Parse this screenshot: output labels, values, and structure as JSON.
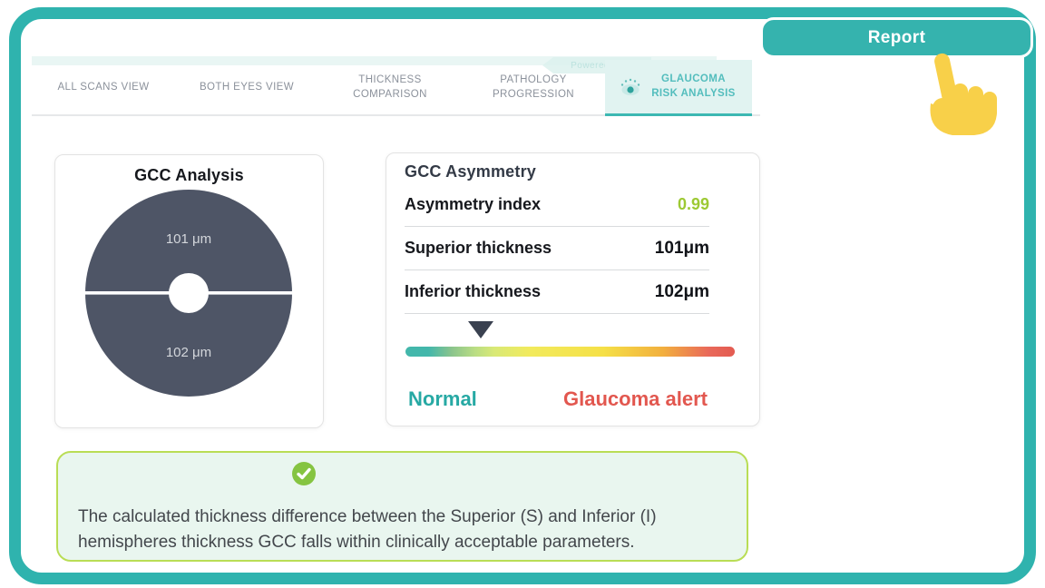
{
  "header": {
    "report_label": "Report"
  },
  "watermark": {
    "label": "Powered by"
  },
  "tabs": [
    {
      "label": "ALL SCANS VIEW",
      "active": false
    },
    {
      "label": "BOTH EYES VIEW",
      "active": false
    },
    {
      "label": "THICKNESS COMPARISON",
      "active": false
    },
    {
      "label": "PATHOLOGY PROGRESSION",
      "active": false
    },
    {
      "label": "GLAUCOMA RISK ANALYSIS",
      "active": true,
      "icon": "eye-icon"
    }
  ],
  "gcc_analysis": {
    "title": "GCC Analysis",
    "superior_label": "101 μm",
    "inferior_label": "102 μm"
  },
  "gcc_asymmetry": {
    "title": "GCC Asymmetry",
    "rows": [
      {
        "label": "Asymmetry index",
        "value": "0.99"
      },
      {
        "label": "Superior thickness",
        "value": "101μm"
      },
      {
        "label": "Inferior thickness",
        "value": "102μm"
      }
    ],
    "scale": {
      "left_label": "Normal",
      "right_label": "Glaucoma alert",
      "marker_position_pct": 23,
      "gradient": [
        "#43b7ab",
        "#8ac48c",
        "#b9dd84",
        "#f2ea5c",
        "#f5e047",
        "#f2b03e",
        "#e35b51"
      ]
    }
  },
  "summary": {
    "icon": "check-circle-icon",
    "line1": "The calculated thickness difference between the Superior (S) and Inferior (I)",
    "line2": "hemispheres thickness GCC falls within clinically acceptable parameters."
  },
  "colors": {
    "accent_teal": "#2fb3ae",
    "active_tab_teal": "#53bdbd",
    "inactive_tab_gray": "#8b919b",
    "donut_slate": "#4e5566",
    "index_green": "#9dc933",
    "normal_teal": "#27a9a4",
    "alert_red": "#e2574f",
    "summary_border_green": "#b9dd55",
    "check_green": "#85c441",
    "hand_yellow": "#f8d049"
  }
}
